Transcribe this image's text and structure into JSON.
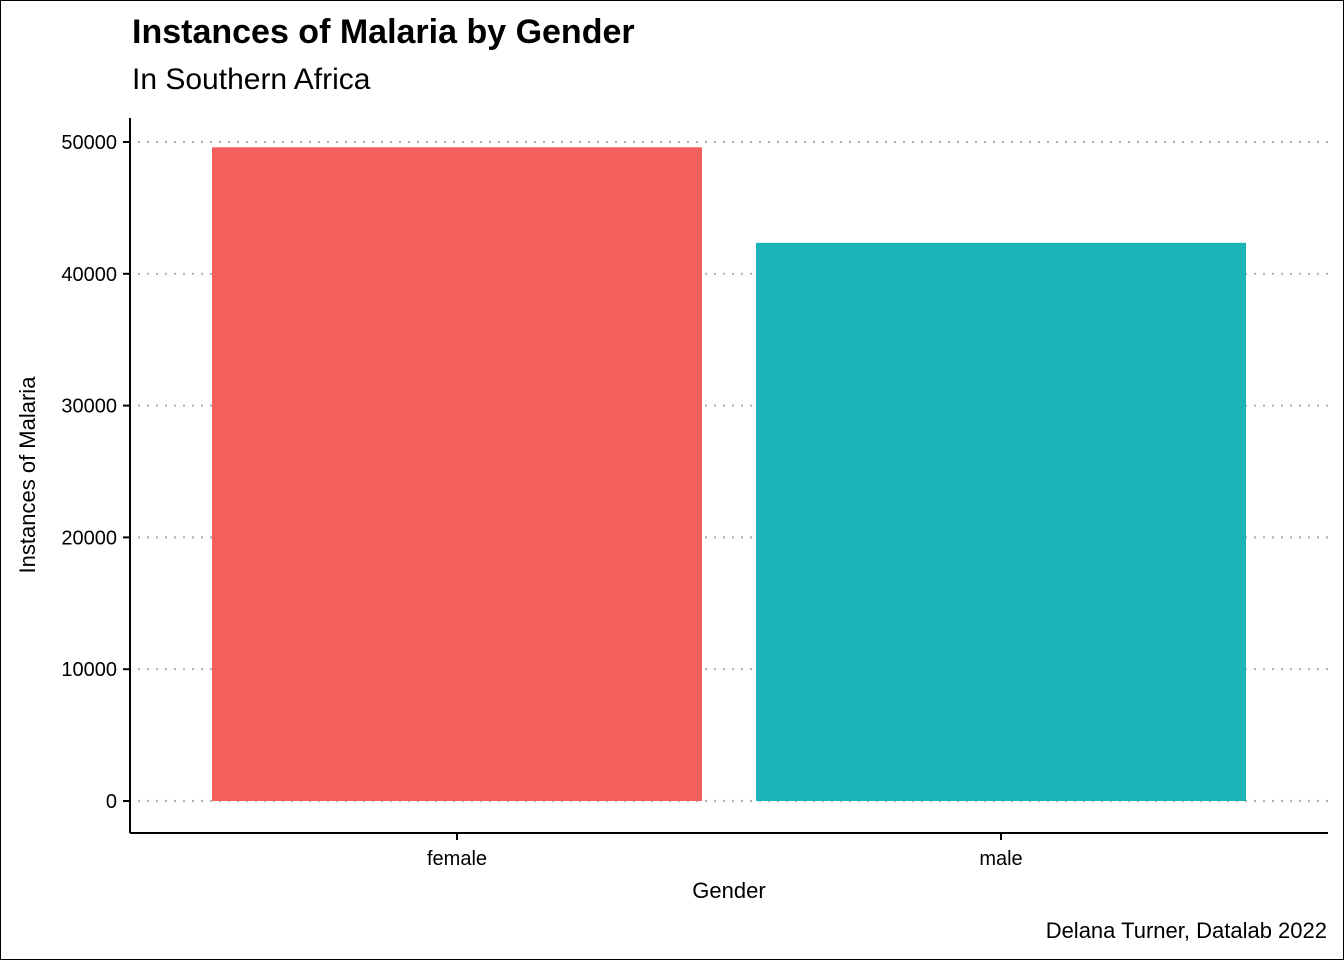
{
  "chart_data": {
    "type": "bar",
    "title": "Instances of Malaria by Gender",
    "subtitle": "In Southern Africa",
    "caption": "Delana Turner, Datalab 2022",
    "xlabel": "Gender",
    "ylabel": "Instances of Malaria",
    "categories": [
      "female",
      "male"
    ],
    "values": [
      49600,
      42350
    ],
    "colors": [
      "#F3605C",
      "#1BB4B9"
    ],
    "ylim": [
      0,
      50000
    ],
    "yticks": [
      0,
      10000,
      20000,
      30000,
      40000,
      50000
    ],
    "grid": "horizontal dotted"
  }
}
